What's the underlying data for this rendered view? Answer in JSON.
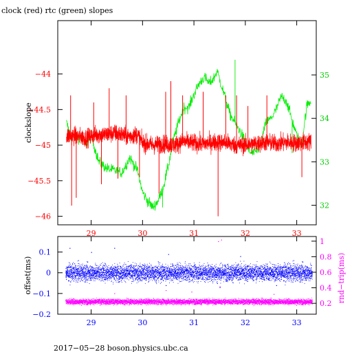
{
  "chart_data": [
    {
      "type": "line",
      "title": "clock (red) rtc (green) slopes",
      "xlabel": "",
      "ylabel": "clockslope",
      "y2label": "",
      "xlim": [
        28.35,
        33.38
      ],
      "ylim": [
        -46.12,
        -43.25
      ],
      "y2lim": [
        31.55,
        36.25
      ],
      "x_ticks": [
        29,
        30,
        31,
        32,
        33
      ],
      "y_ticks": [
        -46,
        -45.5,
        -45,
        -44.5,
        -44
      ],
      "y2_ticks": [
        32,
        33,
        34,
        35
      ],
      "colors": {
        "axis": "#000000",
        "clock": "#ff0000",
        "rtc": "#00ee00",
        "tick_x": "#ff0000",
        "tick_y2": "#00cc00"
      },
      "series": [
        {
          "axis": "left",
          "x_range": [
            28.52,
            33.28
          ],
          "band": [
            [
              28.5,
              -44.87,
              0.09
            ],
            [
              28.7,
              -44.87,
              0.09
            ],
            [
              28.9,
              -44.9,
              0.09
            ],
            [
              29.1,
              -44.85,
              0.09
            ],
            [
              29.3,
              -44.85,
              0.09
            ],
            [
              29.5,
              -44.83,
              0.09
            ],
            [
              29.7,
              -44.88,
              0.09
            ],
            [
              29.9,
              -44.85,
              0.09
            ],
            [
              30.0,
              -44.97,
              0.09
            ],
            [
              30.2,
              -45.0,
              0.09
            ],
            [
              30.4,
              -44.98,
              0.09
            ],
            [
              30.6,
              -45.0,
              0.09
            ],
            [
              30.8,
              -44.95,
              0.09
            ],
            [
              31.0,
              -44.97,
              0.09
            ],
            [
              31.2,
              -44.98,
              0.09
            ],
            [
              31.4,
              -44.96,
              0.09
            ],
            [
              31.6,
              -44.96,
              0.09
            ],
            [
              31.8,
              -45.0,
              0.09
            ],
            [
              32.0,
              -45.0,
              0.09
            ],
            [
              32.2,
              -44.98,
              0.09
            ],
            [
              32.4,
              -44.96,
              0.09
            ],
            [
              32.6,
              -44.98,
              0.09
            ],
            [
              32.8,
              -44.96,
              0.09
            ],
            [
              33.0,
              -44.97,
              0.09
            ],
            [
              33.28,
              -44.95,
              0.09
            ]
          ],
          "spikes": [
            [
              28.6,
              -44.3
            ],
            [
              28.62,
              -45.85
            ],
            [
              28.71,
              -45.74
            ],
            [
              29.05,
              -44.4
            ],
            [
              29.2,
              -45.55
            ],
            [
              29.35,
              -44.2
            ],
            [
              29.52,
              -45.47
            ],
            [
              29.68,
              -44.3
            ],
            [
              29.94,
              -45.45
            ],
            [
              30.32,
              -45.68
            ],
            [
              30.45,
              -44.25
            ],
            [
              30.55,
              -44.1
            ],
            [
              30.78,
              -44.3
            ],
            [
              31.18,
              -44.25
            ],
            [
              31.47,
              -46.0
            ],
            [
              31.62,
              -44.3
            ],
            [
              31.83,
              -44.3
            ],
            [
              32.05,
              -44.45
            ],
            [
              32.42,
              -44.3
            ],
            [
              33.1,
              -45.45
            ]
          ]
        },
        {
          "axis": "right",
          "x_range": [
            28.52,
            33.28
          ],
          "trace": [
            [
              28.52,
              33.9
            ],
            [
              28.6,
              33.6
            ],
            [
              28.8,
              33.55
            ],
            [
              28.9,
              33.4
            ],
            [
              29.0,
              33.6
            ],
            [
              29.15,
              33.0
            ],
            [
              29.3,
              32.85
            ],
            [
              29.45,
              32.8
            ],
            [
              29.6,
              32.75
            ],
            [
              29.75,
              33.1
            ],
            [
              29.9,
              32.8
            ],
            [
              30.0,
              32.3
            ],
            [
              30.1,
              32.1
            ],
            [
              30.2,
              31.95
            ],
            [
              30.3,
              32.1
            ],
            [
              30.4,
              32.4
            ],
            [
              30.5,
              32.9
            ],
            [
              30.6,
              33.5
            ],
            [
              30.7,
              33.9
            ],
            [
              30.8,
              34.25
            ],
            [
              30.9,
              34.25
            ],
            [
              31.0,
              34.55
            ],
            [
              31.1,
              34.8
            ],
            [
              31.2,
              34.95
            ],
            [
              31.3,
              34.8
            ],
            [
              31.4,
              34.95
            ],
            [
              31.45,
              35.1
            ],
            [
              31.5,
              34.9
            ],
            [
              31.6,
              34.5
            ],
            [
              31.7,
              34.1
            ],
            [
              31.8,
              33.9
            ],
            [
              31.9,
              33.7
            ],
            [
              32.0,
              33.45
            ],
            [
              32.1,
              33.2
            ],
            [
              32.2,
              33.2
            ],
            [
              32.3,
              33.4
            ],
            [
              32.4,
              33.9
            ],
            [
              32.5,
              34.0
            ],
            [
              32.6,
              34.2
            ],
            [
              32.7,
              34.5
            ],
            [
              32.8,
              34.4
            ],
            [
              32.9,
              34.0
            ],
            [
              33.0,
              33.6
            ],
            [
              33.1,
              33.4
            ],
            [
              33.15,
              33.9
            ],
            [
              33.2,
              34.3
            ],
            [
              33.28,
              34.4
            ]
          ],
          "peaks": [
            [
              31.8,
              35.35
            ],
            [
              30.39,
              31.95
            ],
            [
              32.91,
              33.2
            ],
            [
              29.61,
              32.85
            ]
          ]
        }
      ]
    },
    {
      "type": "scatter",
      "xlabel": "",
      "ylabel": "offset(ms)",
      "y2label": "rnd−trip(ms)",
      "xlim": [
        28.35,
        33.38
      ],
      "ylim": [
        -0.2,
        0.175
      ],
      "y2lim": [
        0.06,
        1.06
      ],
      "x_ticks": [
        29,
        30,
        31,
        32,
        33
      ],
      "y_ticks": [
        -0.2,
        -0.1,
        0,
        0.1
      ],
      "y2_ticks": [
        0.2,
        0.4,
        0.6,
        0.8,
        1
      ],
      "colors": {
        "axis": "#000000",
        "offset": "#0000ff",
        "rndtrip": "#ff00ff",
        "tick": "#0000ff",
        "tick_y2": "#ff00ff"
      },
      "series": [
        {
          "axis": "left",
          "x_range": [
            28.5,
            33.3
          ],
          "center": 0.0,
          "spread": 0.04,
          "outliers": [
            [
              28.58,
              0.12
            ],
            [
              29.0,
              0.1
            ],
            [
              29.45,
              0.12
            ],
            [
              30.5,
              0.09
            ],
            [
              30.45,
              -0.06
            ],
            [
              31.5,
              -0.07
            ],
            [
              31.45,
              -0.05
            ],
            [
              32.6,
              -0.06
            ],
            [
              31.9,
              0.08
            ]
          ]
        },
        {
          "axis": "right",
          "x_range": [
            28.5,
            33.3
          ],
          "center": 0.22,
          "spread": 0.035,
          "outliers": [
            [
              31.47,
              1.0
            ],
            [
              31.53,
              1.02
            ],
            [
              30.45,
              0.37
            ],
            [
              31.5,
              0.42
            ],
            [
              32.55,
              0.32
            ],
            [
              29.45,
              0.33
            ],
            [
              30.95,
              0.35
            ]
          ]
        }
      ]
    }
  ],
  "footer": {
    "text": "2017−05−28  boson.physics.ubc.ca"
  }
}
